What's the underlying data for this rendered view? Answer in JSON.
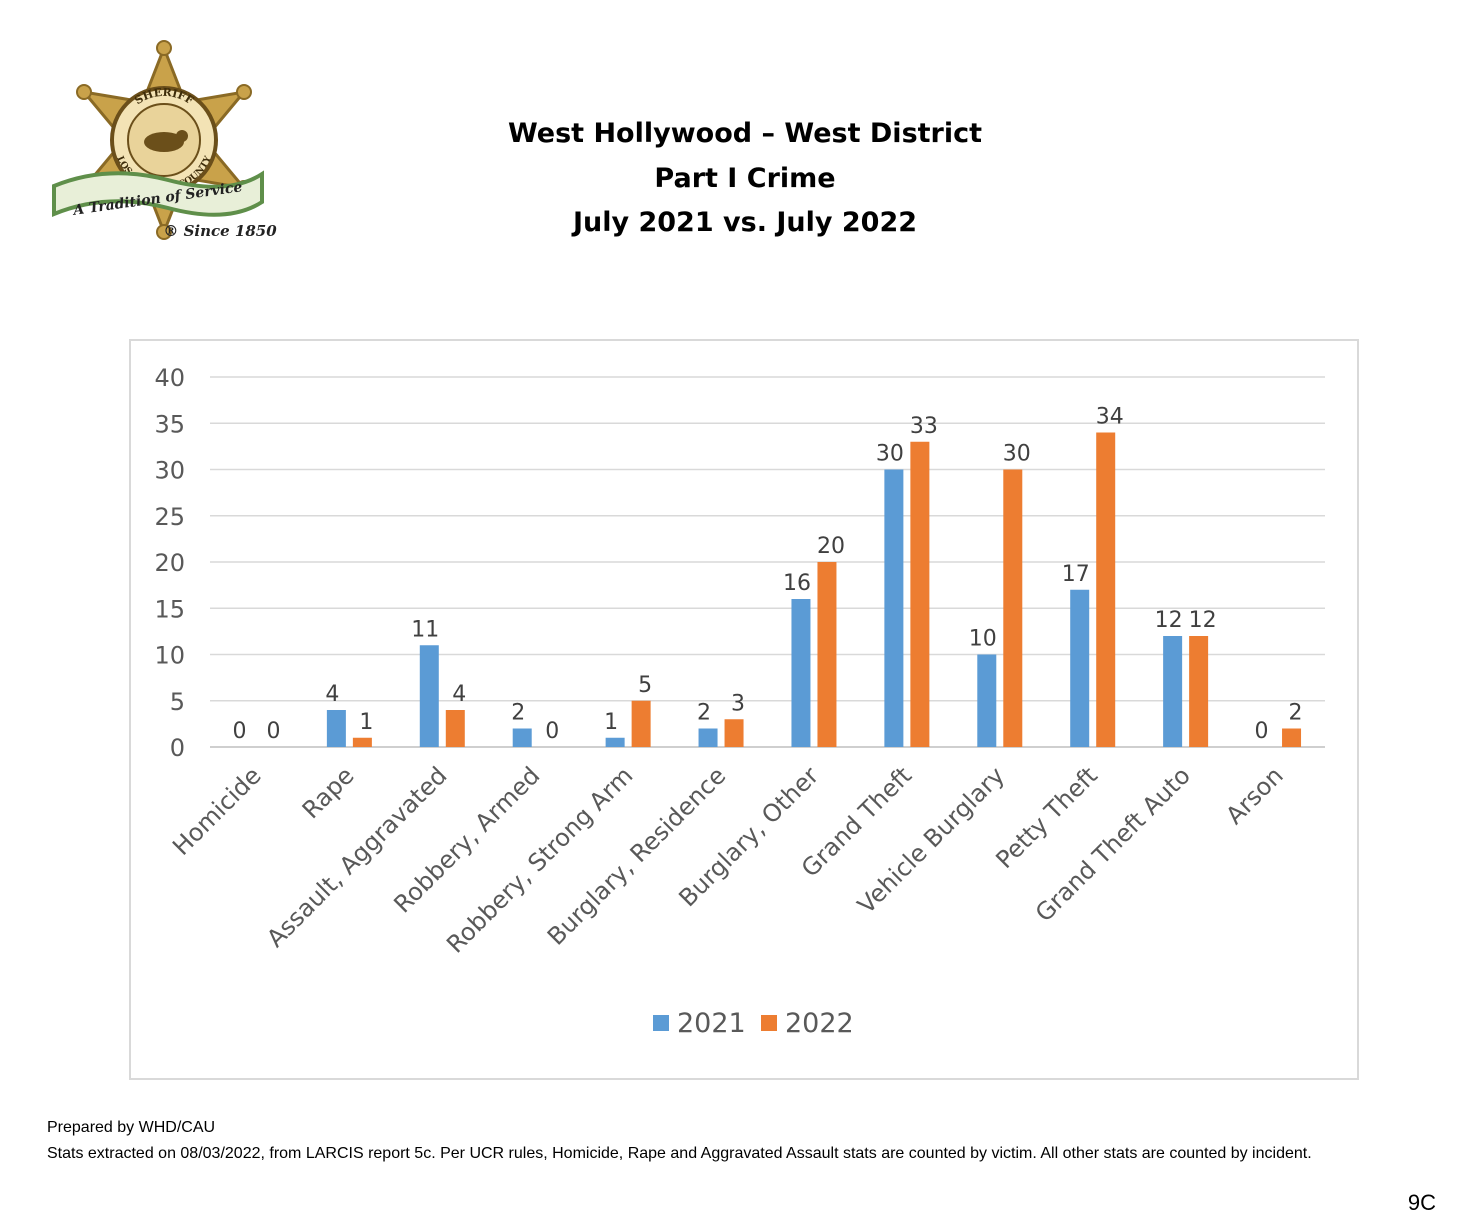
{
  "logo": {
    "top_text": "SHERIFF",
    "ring_text": "LOS ANGELES COUNTY",
    "banner_text": "A Tradition of Service",
    "since_text": "® Since 1850",
    "colors": {
      "gold": "#c9a24a",
      "green": "#5f8f4a",
      "banner": "#e8efd8"
    }
  },
  "title_lines": [
    "West Hollywood – West District",
    "Part I Crime",
    "July 2021 vs. July 2022"
  ],
  "chart_data": {
    "type": "bar",
    "title": "West Hollywood – West District Part I Crime July 2021 vs. July 2022",
    "categories": [
      "Homicide",
      "Rape",
      "Assault, Aggravated",
      "Robbery, Armed",
      "Robbery, Strong Arm",
      "Burglary, Residence",
      "Burglary, Other",
      "Grand Theft",
      "Vehicle Burglary",
      "Petty Theft",
      "Grand Theft Auto",
      "Arson"
    ],
    "series": [
      {
        "name": "2021",
        "color": "#5b9bd5",
        "values": [
          0,
          4,
          11,
          2,
          1,
          2,
          16,
          30,
          10,
          17,
          12,
          0
        ]
      },
      {
        "name": "2022",
        "color": "#ed7d31",
        "values": [
          0,
          1,
          4,
          0,
          5,
          3,
          20,
          33,
          30,
          34,
          12,
          2
        ]
      }
    ],
    "ylim": [
      0,
      40
    ],
    "yticks": [
      0,
      5,
      10,
      15,
      20,
      25,
      30,
      35,
      40
    ],
    "grid": true,
    "legend_position": "bottom",
    "data_labels": true
  },
  "footer": {
    "prepared_by": "Prepared by WHD/CAU",
    "note": "Stats extracted on 08/03/2022, from LARCIS report 5c. Per UCR rules, Homicide, Rape and Aggravated Assault stats are counted by victim. All other stats are counted by incident."
  },
  "page_number": "9C"
}
